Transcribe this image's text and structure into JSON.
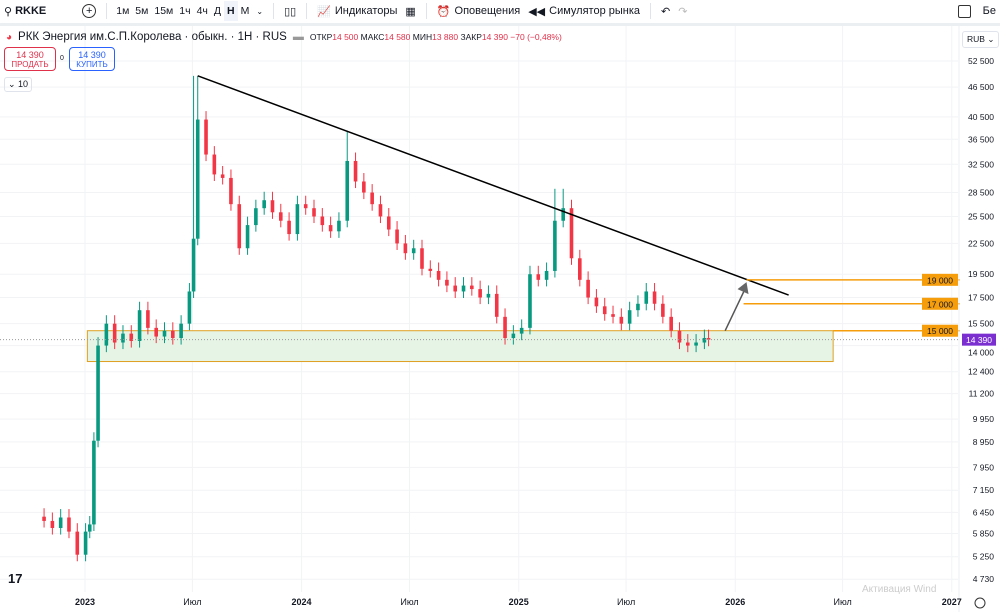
{
  "toolbar": {
    "symbol": "RKKE",
    "timeframes": [
      "1м",
      "5м",
      "15м",
      "1ч",
      "4ч",
      "Д",
      "Н",
      "М"
    ],
    "active_timeframe": "Н",
    "indicators": "Индикаторы",
    "alerts": "Оповещения",
    "replay": "Симулятор рынка",
    "right_label": "Бе"
  },
  "legend": {
    "title": "РКК Энергия им.С.П.Королева · обыкн. · 1Н · RUS",
    "open_label": "ОТКР",
    "open": "14 500",
    "high_label": "МАКС",
    "high": "14 580",
    "low_label": "МИН",
    "low": "13 880",
    "close_label": "ЗАКР",
    "close": "14 390",
    "change": "−70 (−0,48%)"
  },
  "trade": {
    "sell_price": "14 390",
    "sell_label": "ПРОДАТЬ",
    "spread": "0",
    "buy_price": "14 390",
    "buy_label": "КУПИТЬ"
  },
  "indicators_collapse": "10",
  "currency": "RUB",
  "watermark": "Активация Wind",
  "colors": {
    "up": "#089981",
    "down": "#f23645",
    "trendline": "#000000",
    "levels": "#f59d0b",
    "zone_fill": "#e6f4e6",
    "zone_border": "#e0a020",
    "last_price": "#7b2fd1"
  },
  "chart_data": {
    "type": "candlestick",
    "scale": "log",
    "ylim": [
      4500,
      56000
    ],
    "y_ticks": [
      "52 500",
      "46 500",
      "40 500",
      "36 500",
      "32 500",
      "28 500",
      "25 500",
      "22 500",
      "19 500",
      "17 500",
      "15 500",
      "14 000",
      "12 400",
      "11 200",
      "9 950",
      "8 950",
      "7 950",
      "7 150",
      "6 450",
      "5 850",
      "5 250",
      "4 730"
    ],
    "y_tick_values": [
      52500,
      46500,
      40500,
      36500,
      32500,
      28500,
      25500,
      22500,
      19500,
      17500,
      15500,
      14000,
      12400,
      11200,
      9950,
      8950,
      7950,
      7150,
      6450,
      5850,
      5250,
      4730
    ],
    "x_ticks": [
      {
        "label": "2023",
        "date": "2023-01-01"
      },
      {
        "label": "Июл",
        "date": "2023-07-01"
      },
      {
        "label": "2024",
        "date": "2024-01-01"
      },
      {
        "label": "Июл",
        "date": "2024-07-01"
      },
      {
        "label": "2025",
        "date": "2025-01-01"
      },
      {
        "label": "Июл",
        "date": "2025-07-01"
      },
      {
        "label": "2026",
        "date": "2026-01-01"
      },
      {
        "label": "Июл",
        "date": "2026-07-01"
      },
      {
        "label": "2027",
        "date": "2027-01-01"
      }
    ],
    "closes": [
      [
        "2022-10-24",
        6200
      ],
      [
        "2022-11-07",
        6000
      ],
      [
        "2022-11-21",
        6300
      ],
      [
        "2022-12-05",
        5900
      ],
      [
        "2022-12-19",
        5300
      ],
      [
        "2023-01-02",
        5900
      ],
      [
        "2023-01-09",
        6100
      ],
      [
        "2023-01-16",
        9000
      ],
      [
        "2023-01-23",
        14000
      ],
      [
        "2023-02-06",
        15500
      ],
      [
        "2023-02-20",
        14200
      ],
      [
        "2023-03-06",
        14800
      ],
      [
        "2023-03-20",
        14300
      ],
      [
        "2023-04-03",
        16500
      ],
      [
        "2023-04-17",
        15200
      ],
      [
        "2023-05-01",
        14600
      ],
      [
        "2023-05-15",
        15000
      ],
      [
        "2023-05-29",
        14500
      ],
      [
        "2023-06-12",
        15500
      ],
      [
        "2023-06-26",
        18000
      ],
      [
        "2023-07-03",
        23000
      ],
      [
        "2023-07-10",
        40000
      ],
      [
        "2023-07-24",
        34000
      ],
      [
        "2023-08-07",
        31000
      ],
      [
        "2023-08-21",
        30500
      ],
      [
        "2023-09-04",
        27000
      ],
      [
        "2023-09-18",
        22000
      ],
      [
        "2023-10-02",
        24500
      ],
      [
        "2023-10-16",
        26500
      ],
      [
        "2023-10-30",
        27500
      ],
      [
        "2023-11-13",
        26000
      ],
      [
        "2023-11-27",
        25000
      ],
      [
        "2023-12-11",
        23500
      ],
      [
        "2023-12-25",
        27000
      ],
      [
        "2024-01-08",
        26500
      ],
      [
        "2024-01-22",
        25500
      ],
      [
        "2024-02-05",
        24500
      ],
      [
        "2024-02-19",
        23800
      ],
      [
        "2024-03-04",
        25000
      ],
      [
        "2024-03-18",
        33000
      ],
      [
        "2024-04-01",
        30000
      ],
      [
        "2024-04-15",
        28500
      ],
      [
        "2024-04-29",
        27000
      ],
      [
        "2024-05-13",
        25500
      ],
      [
        "2024-05-27",
        24000
      ],
      [
        "2024-06-10",
        22500
      ],
      [
        "2024-06-24",
        21500
      ],
      [
        "2024-07-08",
        22000
      ],
      [
        "2024-07-22",
        20000
      ],
      [
        "2024-08-05",
        19800
      ],
      [
        "2024-08-19",
        19000
      ],
      [
        "2024-09-02",
        18500
      ],
      [
        "2024-09-16",
        18000
      ],
      [
        "2024-09-30",
        18500
      ],
      [
        "2024-10-14",
        18200
      ],
      [
        "2024-10-28",
        17500
      ],
      [
        "2024-11-11",
        17800
      ],
      [
        "2024-11-25",
        16000
      ],
      [
        "2024-12-09",
        14500
      ],
      [
        "2024-12-23",
        14800
      ],
      [
        "2025-01-06",
        15200
      ],
      [
        "2025-01-20",
        19500
      ],
      [
        "2025-02-03",
        19000
      ],
      [
        "2025-02-17",
        19800
      ],
      [
        "2025-03-03",
        25000
      ],
      [
        "2025-03-17",
        26500
      ],
      [
        "2025-03-31",
        21000
      ],
      [
        "2025-04-14",
        19000
      ],
      [
        "2025-04-28",
        17500
      ],
      [
        "2025-05-12",
        16800
      ],
      [
        "2025-05-26",
        16200
      ],
      [
        "2025-06-09",
        16000
      ],
      [
        "2025-06-23",
        15500
      ],
      [
        "2025-07-07",
        16500
      ],
      [
        "2025-07-21",
        17000
      ],
      [
        "2025-08-04",
        18000
      ],
      [
        "2025-08-18",
        17000
      ],
      [
        "2025-09-01",
        16000
      ],
      [
        "2025-09-15",
        15000
      ],
      [
        "2025-09-29",
        14200
      ],
      [
        "2025-10-13",
        14000
      ],
      [
        "2025-10-27",
        14200
      ],
      [
        "2025-11-10",
        14500
      ],
      [
        "2025-11-17",
        14390
      ]
    ],
    "peaks": [
      [
        "2023-07-10",
        49000
      ],
      [
        "2024-03-18",
        38000
      ],
      [
        "2025-03-10",
        29000
      ]
    ],
    "trendline": [
      [
        "2023-07-10",
        49000
      ],
      [
        "2026-04-01",
        17700
      ]
    ],
    "levels": [
      {
        "price": 19000,
        "label": "19 000",
        "from": "2026-01-20"
      },
      {
        "price": 17000,
        "label": "17 000",
        "from": "2026-01-15"
      },
      {
        "price": 15000,
        "label": "15 000",
        "from": "2026-06-15"
      }
    ],
    "zone": {
      "from": "2023-01-05",
      "to": "2026-06-15",
      "top": 15000,
      "bottom": 13000
    },
    "arrow": {
      "from": [
        "2025-12-15",
        15000
      ],
      "to": [
        "2026-01-20",
        18800
      ]
    },
    "last_price": {
      "value": 14390,
      "label": "14 390"
    }
  }
}
